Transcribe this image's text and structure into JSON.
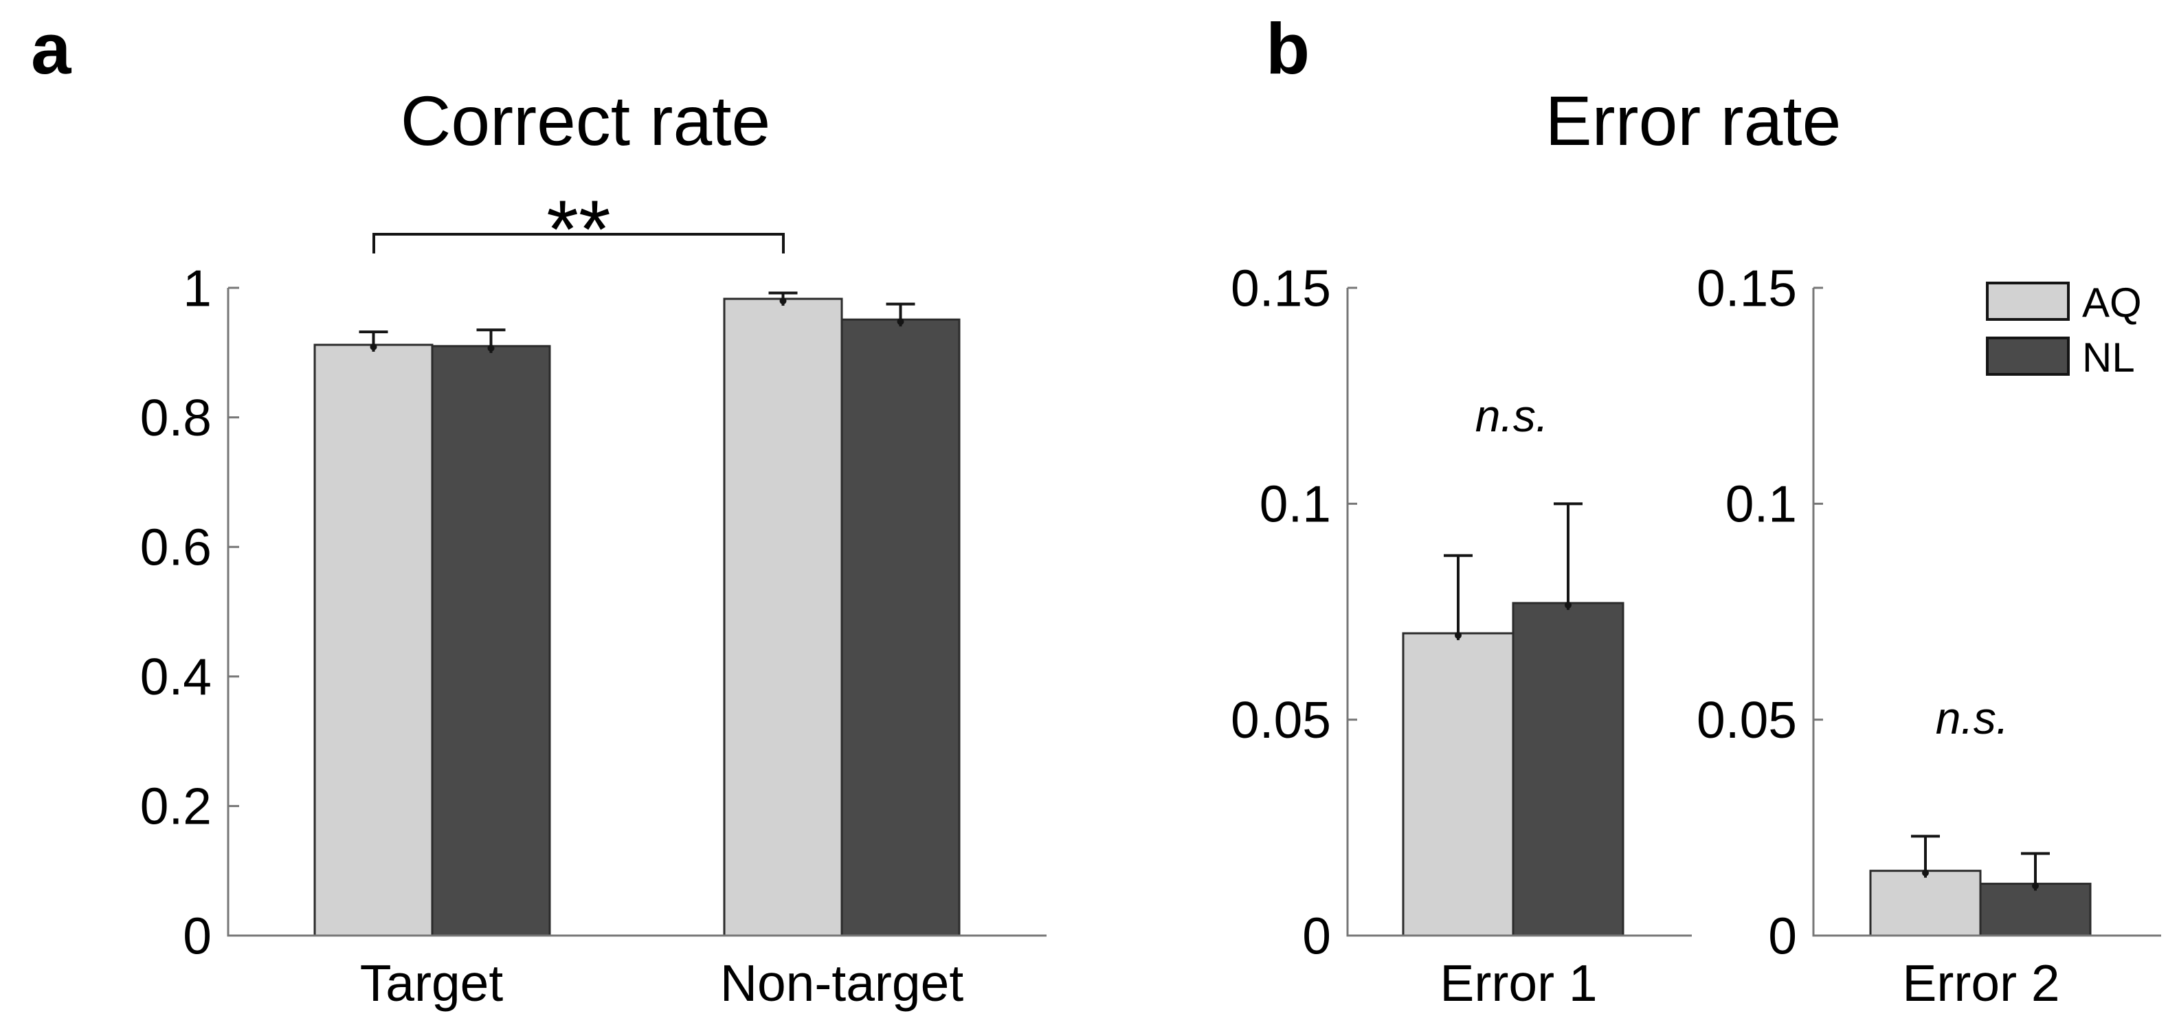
{
  "figure": {
    "background": "#ffffff",
    "panels": [
      {
        "label": "a",
        "title": "Correct rate"
      },
      {
        "label": "b",
        "title": "Error rate"
      }
    ]
  },
  "colors": {
    "series": [
      "#d2d2d2",
      "#4a4a4a"
    ],
    "bar_border": "#2b2b2b",
    "axis": "#777777",
    "error_bar": "#141414",
    "text": "#000000"
  },
  "legend": {
    "position": "top-right",
    "items": [
      {
        "label": "AQ",
        "color": "#d2d2d2"
      },
      {
        "label": "NL",
        "color": "#4a4a4a"
      }
    ]
  },
  "chart_data": [
    {
      "id": "correct-rate",
      "type": "bar",
      "title": "Correct rate",
      "categories": [
        "Target",
        "Non-target"
      ],
      "series": [
        {
          "name": "AQ",
          "values": [
            0.912,
            0.983
          ],
          "errors_plus": [
            0.02,
            0.009
          ]
        },
        {
          "name": "NL",
          "values": [
            0.91,
            0.951
          ],
          "errors_plus": [
            0.025,
            0.024
          ]
        }
      ],
      "ylim": [
        0,
        1
      ],
      "yticks": [
        {
          "v": 0,
          "label": "0"
        },
        {
          "v": 0.2,
          "label": "0.2"
        },
        {
          "v": 0.4,
          "label": "0.4"
        },
        {
          "v": 0.6,
          "label": "0.6"
        },
        {
          "v": 0.8,
          "label": "0.8"
        },
        {
          "v": 1,
          "label": "1"
        }
      ],
      "grid": false,
      "annotation": "**",
      "annotation_type": "significance-bracket",
      "significance_between": [
        "AQ Target",
        "AQ Non-target"
      ]
    },
    {
      "id": "error-1",
      "type": "bar",
      "title": "",
      "categories": [
        "Error 1"
      ],
      "series": [
        {
          "name": "AQ",
          "values": [
            0.07
          ],
          "errors_plus": [
            0.018
          ]
        },
        {
          "name": "NL",
          "values": [
            0.077
          ],
          "errors_plus": [
            0.023
          ]
        }
      ],
      "ylim": [
        0,
        0.15
      ],
      "yticks": [
        {
          "v": 0,
          "label": "0"
        },
        {
          "v": 0.05,
          "label": "0.05"
        },
        {
          "v": 0.1,
          "label": "0.1"
        },
        {
          "v": 0.15,
          "label": "0.15"
        }
      ],
      "grid": false,
      "annotation": "n.s.",
      "annotation_type": "not-significant"
    },
    {
      "id": "error-2",
      "type": "bar",
      "title": "",
      "categories": [
        "Error 2"
      ],
      "series": [
        {
          "name": "AQ",
          "values": [
            0.015
          ],
          "errors_plus": [
            0.008
          ]
        },
        {
          "name": "NL",
          "values": [
            0.012
          ],
          "errors_plus": [
            0.007
          ]
        }
      ],
      "ylim": [
        0,
        0.15
      ],
      "yticks": [
        {
          "v": 0,
          "label": "0"
        },
        {
          "v": 0.05,
          "label": "0.05"
        },
        {
          "v": 0.1,
          "label": "0.1"
        },
        {
          "v": 0.15,
          "label": "0.15"
        }
      ],
      "grid": false,
      "annotation": "n.s.",
      "annotation_type": "not-significant"
    }
  ]
}
